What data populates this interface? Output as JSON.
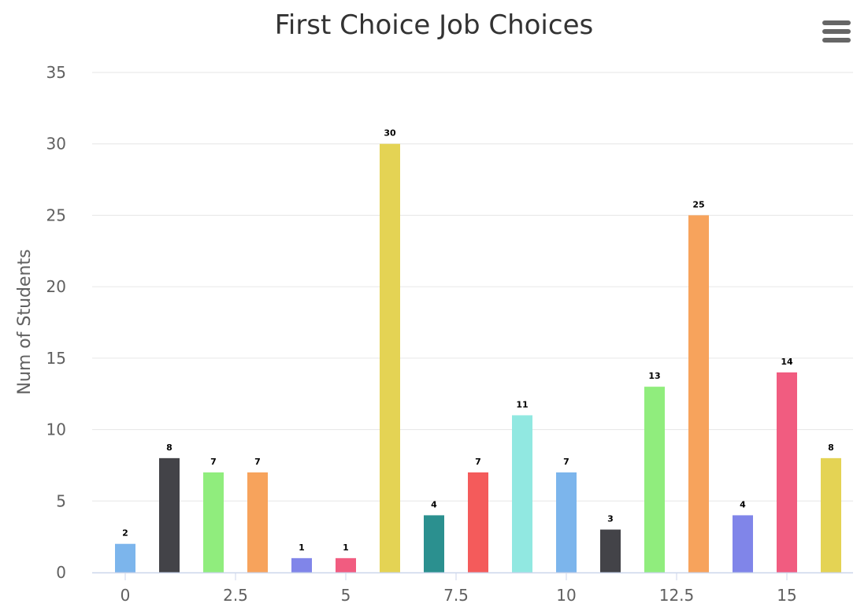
{
  "chart_data": {
    "type": "bar",
    "title": "First Choice Job Choices",
    "ylabel": "Num of Students",
    "xlim": [
      -0.75,
      16.5
    ],
    "ylim": [
      0,
      35
    ],
    "yticks": [
      0,
      5,
      10,
      15,
      20,
      25,
      30,
      35
    ],
    "xticks": [
      0,
      2.5,
      5,
      7.5,
      10,
      12.5,
      15
    ],
    "grid": true,
    "legend": "none",
    "x": [
      0,
      1,
      2,
      3,
      4,
      5,
      6,
      7,
      8,
      9,
      10,
      11,
      12,
      13,
      14,
      15,
      16
    ],
    "values": [
      2,
      8,
      7,
      7,
      1,
      1,
      30,
      4,
      7,
      11,
      7,
      3,
      13,
      25,
      4,
      14,
      8
    ],
    "colors": [
      "#7cb5ec",
      "#434348",
      "#90ed7d",
      "#f7a35c",
      "#8085e9",
      "#f15c80",
      "#e4d354",
      "#2b908f",
      "#f45b5b",
      "#91e8e1",
      "#7cb5ec",
      "#434348",
      "#90ed7d",
      "#f7a35c",
      "#8085e9",
      "#f15c80",
      "#e4d354"
    ]
  },
  "menu": {
    "icon": "hamburger-menu-icon"
  }
}
